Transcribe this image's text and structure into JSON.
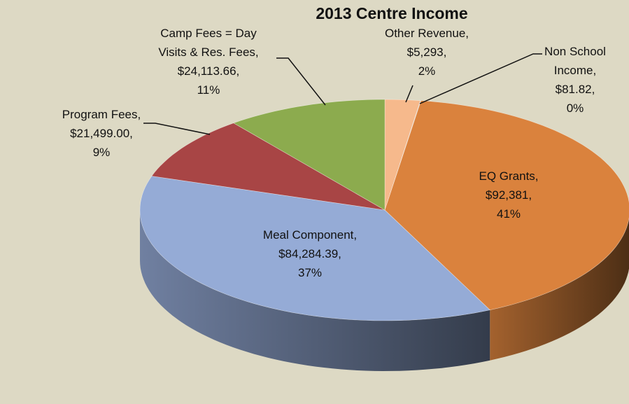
{
  "chart_data": {
    "type": "pie",
    "title": "2013 Centre Income",
    "categories": [
      "Other Revenue,",
      "Non School Income,",
      "EQ Grants,",
      "Meal Component,",
      "Program Fees,",
      "Camp Fees = Day Visits & Res. Fees,"
    ],
    "values": [
      5293,
      81.82,
      92381,
      84284.39,
      21499.0,
      24113.66
    ],
    "value_labels": [
      "$5,293,",
      "$81.82,",
      "$92,381,",
      "$84,284.39,",
      "$21,499.00,",
      "$24,113.66,"
    ],
    "percents": [
      2,
      0,
      41,
      37,
      9,
      11
    ],
    "percent_labels": [
      "2%",
      "0%",
      "41%",
      "37%",
      "9%",
      "11%"
    ],
    "colors": [
      "#f6b98c",
      "#c9c9c9",
      "#da823d",
      "#95abd6",
      "#a84545",
      "#8cab4e"
    ],
    "start_angle": 0,
    "direction": "clockwise",
    "legend": false
  }
}
